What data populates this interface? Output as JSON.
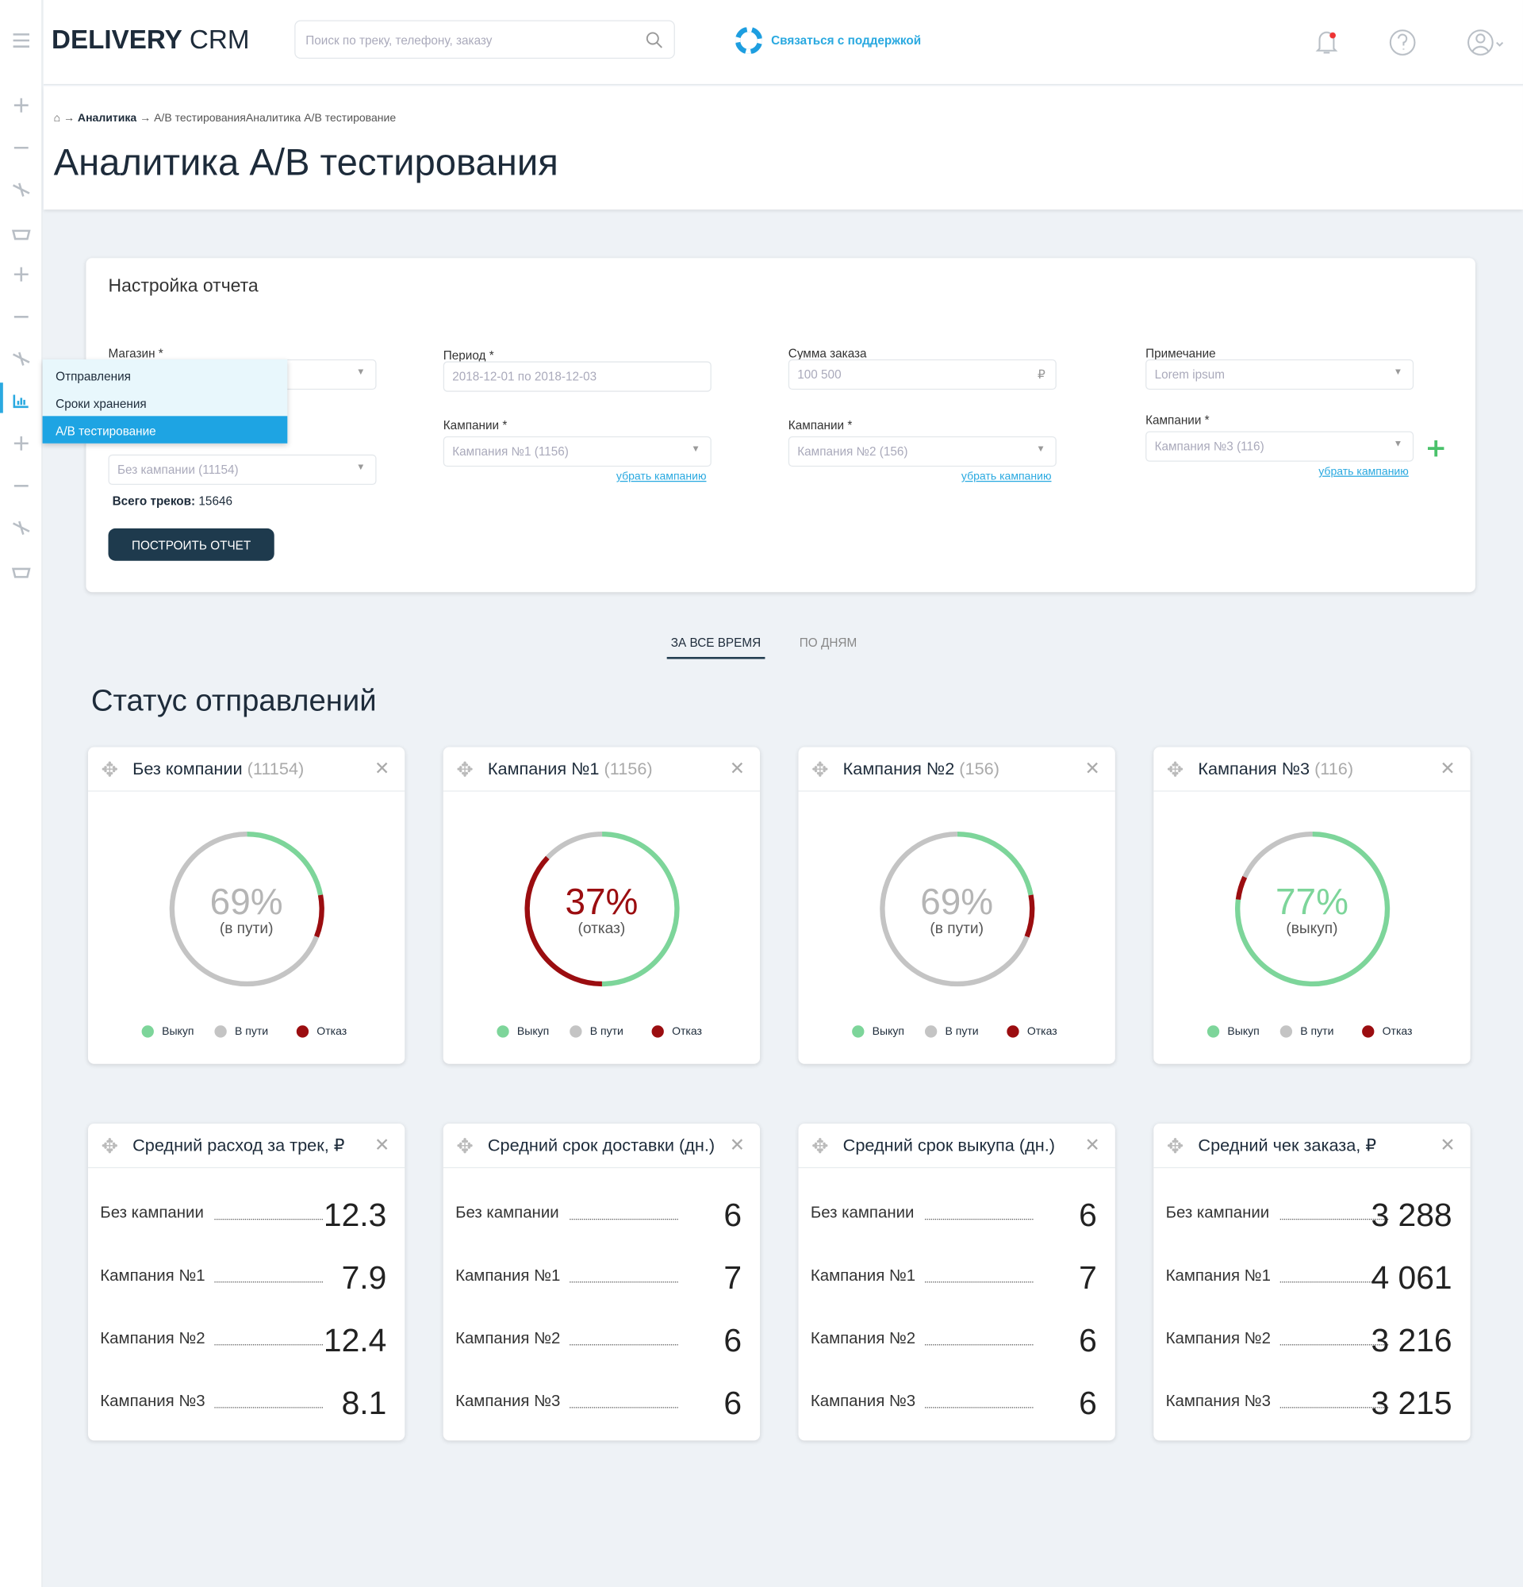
{
  "header": {
    "logo_bold": "DELIVERY",
    "logo_light": "CRM",
    "search_placeholder": "Поиск по треку, телефону, заказу",
    "support": "Связаться с поддержкой"
  },
  "sidebar_menu": [
    "Отправления",
    "Сроки хранения",
    "A/B тестирование"
  ],
  "breadcrumbs": [
    "Аналитика",
    "A/B тестированияАналитика A/B тестирование"
  ],
  "page_title": "Аналитика A/B тестирования",
  "settings": {
    "title": "Настройка отчета",
    "columns": [
      {
        "top": {
          "label": "Магазин *",
          "value": ""
        },
        "bottom": {
          "value": "Без кампании (11154)"
        }
      },
      {
        "top": {
          "label": "Период *",
          "value": "2018-12-01  по  2018-12-03"
        },
        "bottom": {
          "label": "Кампании *",
          "value": "Кампания №1 (1156)",
          "link": "убрать кампанию"
        }
      },
      {
        "top": {
          "label": "Сумма заказа",
          "value": "100 500",
          "suffix": "₽"
        },
        "bottom": {
          "label": "Кампании *",
          "value": "Кампания №2 (156)",
          "link": "убрать кампанию"
        }
      },
      {
        "top": {
          "label": "Примечание",
          "value": "Lorem ipsum"
        },
        "bottom": {
          "label": "Кампании *",
          "value": "Кампания №3 (116)",
          "link": "убрать кампанию"
        }
      }
    ],
    "total_label": "Всего треков:",
    "total_value": "15646",
    "button": "ПОСТРОИТЬ ОТЧЕТ"
  },
  "tabs": [
    "ЗА ВСЕ ВРЕМЯ",
    "ПО ДНЯМ"
  ],
  "status_title": "Статус отправлений",
  "status_cards": [
    {
      "title": "Без компании",
      "count": "(11154)",
      "center_value": "69%",
      "center_caption": "(в пути)",
      "center_color": "#b5b5b5",
      "segments": [
        {
          "name": "Выкуп",
          "color": "#7dd59a",
          "value": 22
        },
        {
          "name": "Отказ",
          "color": "#9b0d10",
          "value": 9
        },
        {
          "name": "В пути",
          "color": "#c4c4c4",
          "value": 69
        }
      ]
    },
    {
      "title": "Кампания №1",
      "count": "(1156)",
      "center_value": "37%",
      "center_caption": "(отказ)",
      "center_color": "#9b0d10",
      "segments": [
        {
          "name": "Выкуп",
          "color": "#7dd59a",
          "value": 50
        },
        {
          "name": "Отказ",
          "color": "#9b0d10",
          "value": 37
        },
        {
          "name": "В пути",
          "color": "#c4c4c4",
          "value": 13
        }
      ]
    },
    {
      "title": "Кампания №2",
      "count": "(156)",
      "center_value": "69%",
      "center_caption": "(в пути)",
      "center_color": "#b5b5b5",
      "segments": [
        {
          "name": "Выкуп",
          "color": "#7dd59a",
          "value": 22
        },
        {
          "name": "Отказ",
          "color": "#9b0d10",
          "value": 9
        },
        {
          "name": "В пути",
          "color": "#c4c4c4",
          "value": 69
        }
      ]
    },
    {
      "title": "Кампания №3",
      "count": "(116)",
      "center_value": "77%",
      "center_caption": "(выкуп)",
      "center_color": "#7dd59a",
      "segments": [
        {
          "name": "Выкуп",
          "color": "#7dd59a",
          "value": 77
        },
        {
          "name": "Отказ",
          "color": "#9b0d10",
          "value": 5
        },
        {
          "name": "В пути",
          "color": "#c4c4c4",
          "value": 18
        }
      ]
    }
  ],
  "metric_cards": [
    {
      "title": "Средний расход за трек, ₽",
      "rows": [
        {
          "label": "Без кампании",
          "value": "12.3"
        },
        {
          "label": "Кампания №1",
          "value": "7.9"
        },
        {
          "label": "Кампания №2",
          "value": "12.4"
        },
        {
          "label": "Кампания №3",
          "value": "8.1"
        }
      ]
    },
    {
      "title": "Средний срок доставки (дн.)",
      "rows": [
        {
          "label": "Без кампании",
          "value": "6"
        },
        {
          "label": "Кампания №1",
          "value": "7"
        },
        {
          "label": "Кампания №2",
          "value": "6"
        },
        {
          "label": "Кампания №3",
          "value": "6"
        }
      ]
    },
    {
      "title": "Средний срок выкупа (дн.)",
      "rows": [
        {
          "label": "Без кампании",
          "value": "6"
        },
        {
          "label": "Кампания №1",
          "value": "7"
        },
        {
          "label": "Кампания №2",
          "value": "6"
        },
        {
          "label": "Кампания №3",
          "value": "6"
        }
      ]
    },
    {
      "title": "Средний чек заказа, ₽",
      "rows": [
        {
          "label": "Без кампании",
          "value": "3 288"
        },
        {
          "label": "Кампания №1",
          "value": "4 061"
        },
        {
          "label": "Кампания №2",
          "value": "3 216"
        },
        {
          "label": "Кампания №3",
          "value": "3 215"
        }
      ]
    }
  ]
}
